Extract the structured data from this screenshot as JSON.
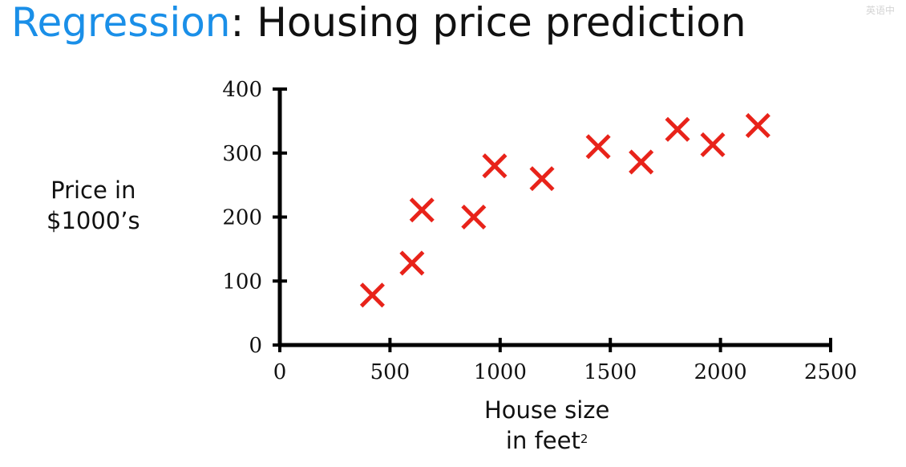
{
  "header": {
    "title_accent": "Regression",
    "title_rest": ": Housing price prediction",
    "corner_mark": "英语中"
  },
  "chart_data": {
    "type": "scatter",
    "title": "Regression: Housing price prediction",
    "xlabel_line1": "House size",
    "xlabel_line2": "in feet",
    "xlabel_sup": "2",
    "ylabel_line1": "Price in",
    "ylabel_line2": "$1000’s",
    "xlim": [
      0,
      2500
    ],
    "ylim": [
      0,
      400
    ],
    "xticks": [
      0,
      500,
      1000,
      1500,
      2000,
      2500
    ],
    "yticks": [
      0,
      100,
      200,
      300,
      400
    ],
    "grid": false,
    "marker": "x",
    "marker_color": "#e8231a",
    "points": [
      {
        "x": 420,
        "y": 78
      },
      {
        "x": 600,
        "y": 128
      },
      {
        "x": 645,
        "y": 211
      },
      {
        "x": 880,
        "y": 200
      },
      {
        "x": 975,
        "y": 280
      },
      {
        "x": 1190,
        "y": 260
      },
      {
        "x": 1445,
        "y": 310
      },
      {
        "x": 1640,
        "y": 286
      },
      {
        "x": 1805,
        "y": 337
      },
      {
        "x": 1965,
        "y": 313
      },
      {
        "x": 2170,
        "y": 343
      }
    ]
  }
}
